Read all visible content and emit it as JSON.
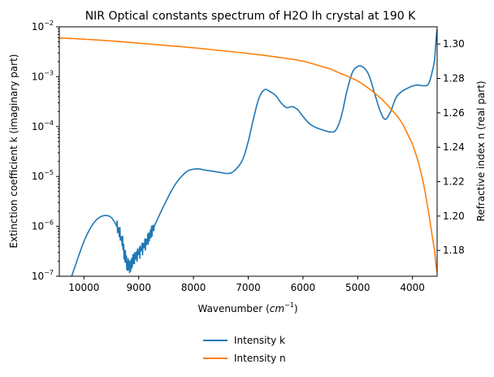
{
  "chart_data": {
    "type": "line",
    "title": "NIR Optical constants spectrum of H2O Ih crystal at 190 K",
    "xlabel": "Wavenumber",
    "xlabel_unit": "cm",
    "xlabel_unit_exp": "−1",
    "ylabel_left": "Extinction coefficient k (imaginary part)",
    "ylabel_right": "Refractive index n (real part)",
    "x_reversed": true,
    "xlim": [
      10450,
      3550
    ],
    "ylim_left": [
      1e-07,
      0.01
    ],
    "yscale_left": "log",
    "ylim_right": [
      1.165,
      1.31
    ],
    "x_ticks": [
      10000,
      9000,
      8000,
      7000,
      6000,
      5000,
      4000
    ],
    "y_ticks_left": [
      {
        "mant": "10",
        "exp": "−7",
        "value": 1e-07
      },
      {
        "mant": "10",
        "exp": "−6",
        "value": 1e-06
      },
      {
        "mant": "10",
        "exp": "−5",
        "value": 1e-05
      },
      {
        "mant": "10",
        "exp": "−4",
        "value": 0.0001
      },
      {
        "mant": "10",
        "exp": "−3",
        "value": 0.001
      },
      {
        "mant": "10",
        "exp": "−2",
        "value": 0.01
      }
    ],
    "y_ticks_right": [
      "1.18",
      "1.20",
      "1.22",
      "1.24",
      "1.26",
      "1.28",
      "1.30"
    ],
    "legend_position": "bottom-center",
    "series": [
      {
        "name": "Intensity k",
        "color": "#1f77b4",
        "axis": "left",
        "x": [
          10300,
          10200,
          10100,
          10000,
          9900,
          9800,
          9700,
          9600,
          9500,
          9400,
          9300,
          9250,
          9200,
          9150,
          9100,
          9000,
          8900,
          8800,
          8700,
          8600,
          8500,
          8400,
          8300,
          8200,
          8100,
          8000,
          7900,
          7800,
          7700,
          7600,
          7500,
          7400,
          7300,
          7200,
          7100,
          7000,
          6900,
          6800,
          6700,
          6600,
          6500,
          6400,
          6300,
          6200,
          6100,
          6000,
          5900,
          5800,
          5700,
          5600,
          5500,
          5400,
          5300,
          5200,
          5100,
          5000,
          4900,
          4800,
          4700,
          4600,
          4500,
          4400,
          4300,
          4200,
          4100,
          4000,
          3900,
          3800,
          3700,
          3600,
          3550
        ],
        "y": [
          6e-08,
          1.2e-07,
          2.5e-07,
          5e-07,
          8.5e-07,
          1.25e-06,
          1.55e-06,
          1.65e-06,
          1.5e-06,
          1e-06,
          5e-07,
          2.5e-07,
          1.7e-07,
          1.6e-07,
          2.2e-07,
          3e-07,
          4.2e-07,
          6.5e-07,
          1.1e-06,
          1.9e-06,
          3.2e-06,
          5.2e-06,
          7.8e-06,
          1.05e-05,
          1.3e-05,
          1.4e-05,
          1.42e-05,
          1.35e-05,
          1.3e-05,
          1.25e-05,
          1.2e-05,
          1.15e-05,
          1.2e-05,
          1.5e-05,
          2.2e-05,
          5e-05,
          0.00015,
          0.00038,
          0.00055,
          0.0005,
          0.00042,
          0.0003,
          0.00024,
          0.00025,
          0.00022,
          0.00016,
          0.00012,
          0.0001,
          9e-05,
          8.3e-05,
          7.8e-05,
          8.5e-05,
          0.00016,
          0.0005,
          0.0012,
          0.0016,
          0.00155,
          0.0011,
          0.0005,
          0.00022,
          0.00014,
          0.0002,
          0.00038,
          0.0005,
          0.00058,
          0.00065,
          0.00068,
          0.00066,
          0.00075,
          0.002,
          0.009
        ]
      },
      {
        "name": "Intensity n",
        "color": "#ff7f0e",
        "axis": "right",
        "x": [
          10450,
          10000,
          9500,
          9000,
          8500,
          8000,
          7500,
          7000,
          6500,
          6000,
          5500,
          5200,
          5000,
          4800,
          4600,
          4400,
          4200,
          4000,
          3900,
          3800,
          3700,
          3600,
          3550
        ],
        "y": [
          1.3035,
          1.3028,
          1.3018,
          1.3005,
          1.2992,
          1.2978,
          1.2962,
          1.2945,
          1.2925,
          1.29,
          1.2855,
          1.2815,
          1.2785,
          1.2742,
          1.269,
          1.2625,
          1.2545,
          1.242,
          1.232,
          1.219,
          1.201,
          1.181,
          1.1675
        ]
      }
    ]
  }
}
